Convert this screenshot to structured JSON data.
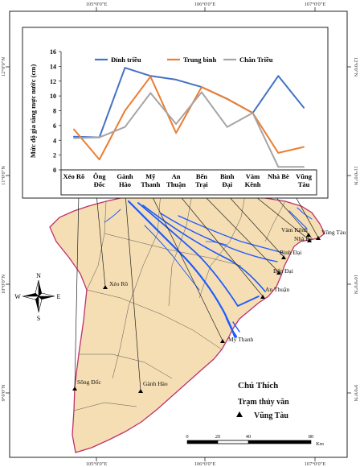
{
  "map": {
    "lon_ticks": [
      "105°0'0\"E",
      "106°0'0\"E",
      "107°0'0\"E"
    ],
    "lat_ticks": [
      "12°0'0\"N",
      "11°0'0\"N",
      "10°0'0\"N",
      "9°0'0\"N"
    ],
    "north_arrow": {
      "n": "N",
      "s": "S",
      "e": "E",
      "w": "W"
    },
    "stations_on_map": [
      "Vũng Tàu",
      "Vàm Kênh",
      "Nhà Bè",
      "Bình Đại",
      "Bến Đại",
      "An Thuận",
      "Mỹ Thanh",
      "Xẻo Rô",
      "Sông Đốc",
      "Gành Hào"
    ],
    "legend": {
      "title": "Chú Thích",
      "subtitle": "Trạm thủy văn",
      "item": "Vũng Tàu"
    },
    "scalebar": {
      "labels": [
        "0",
        "20",
        "40",
        "80"
      ],
      "unit": "Km"
    },
    "colors": {
      "land": "#f5deb3",
      "river": "#1e5bff",
      "coast": "#c0306a",
      "border": "#444444"
    }
  },
  "chart_data": {
    "type": "line",
    "categories": [
      "Xẻo Rô",
      "Ông Đốc",
      "Gành Hào",
      "Mỹ Thanh",
      "An Thuận",
      "Bến Trại",
      "Bình Đại",
      "Vàm Kênh",
      "Nhà Bè",
      "Vũng Tàu"
    ],
    "category_lines": [
      [
        "Xẻo Rô"
      ],
      [
        "Ông",
        "Đốc"
      ],
      [
        "Gành",
        "Hào"
      ],
      [
        "Mỹ",
        "Thanh"
      ],
      [
        "An",
        "Thuận"
      ],
      [
        "Bến",
        "Trại"
      ],
      [
        "Bình",
        "Đại"
      ],
      [
        "Vàm",
        "Kênh"
      ],
      [
        "Nhà Bè"
      ],
      [
        "Vũng",
        "Tàu"
      ]
    ],
    "series": [
      {
        "name": "Đỉnh triều",
        "color": "#4472c4",
        "values": [
          4.5,
          4.4,
          13.8,
          12.7,
          12.2,
          11.2,
          9.6,
          7.7,
          12.7,
          8.4
        ]
      },
      {
        "name": "Trung bình",
        "color": "#ed7d31",
        "values": [
          5.5,
          1.4,
          8.0,
          12.6,
          5.0,
          11.2,
          9.6,
          7.7,
          2.3,
          3.1
        ]
      },
      {
        "name": "Chân Triều",
        "color": "#a5a5a5",
        "values": [
          4.3,
          4.4,
          5.8,
          10.4,
          6.2,
          10.5,
          5.8,
          7.7,
          0.4,
          0.4
        ]
      }
    ],
    "ylabel": "Mức độ gia tăng mực nước (cm)",
    "ylim": [
      0,
      16
    ],
    "yticks": [
      0,
      2,
      4,
      6,
      8,
      10,
      12,
      14,
      16
    ],
    "grid": false,
    "legend_position": "top-right"
  }
}
